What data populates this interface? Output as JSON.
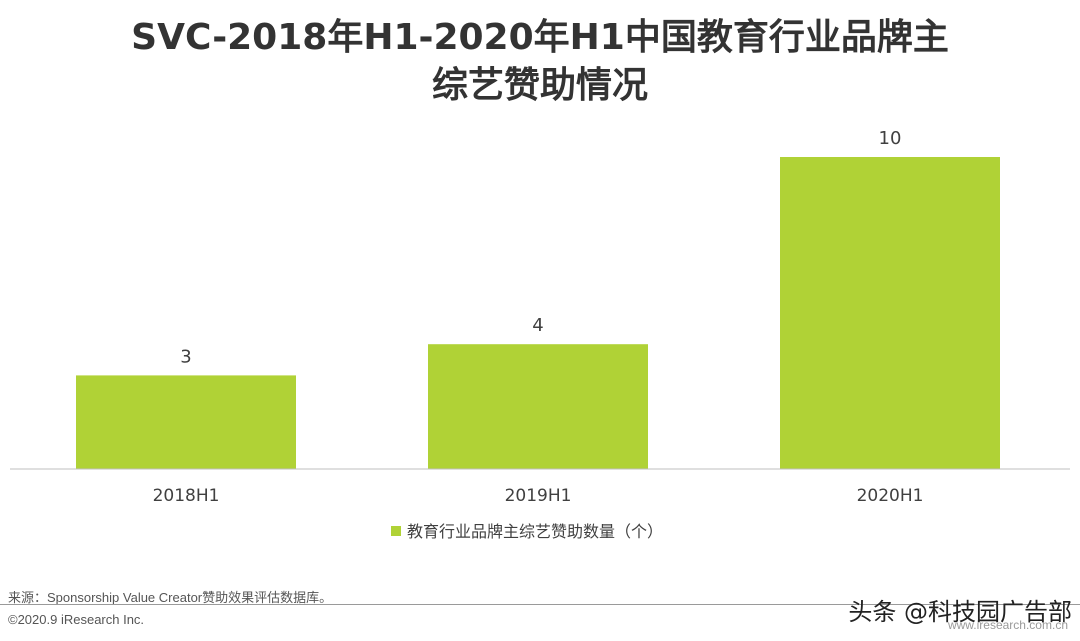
{
  "title_line1": "SVC-2018年H1-2020年H1中国教育行业品牌主",
  "title_line2": "综艺赞助情况",
  "chart_data": {
    "type": "bar",
    "categories": [
      "2018H1",
      "2019H1",
      "2020H1"
    ],
    "series": [
      {
        "name": "教育行业品牌主综艺赞助数量（个）",
        "values": [
          3,
          4,
          10
        ]
      }
    ],
    "data_labels": [
      "3",
      "4",
      "10"
    ],
    "ylim": [
      0,
      10
    ],
    "grid": false,
    "legend_position": "bottom",
    "bar_color": "#b0d236"
  },
  "footer": {
    "source": "来源：Sponsorship Value Creator赞助效果评估数据库。",
    "copyright": "©2020.9 iResearch Inc.",
    "watermark": "头条 @科技园广告部",
    "site": "www.iresearch.com.cn"
  }
}
